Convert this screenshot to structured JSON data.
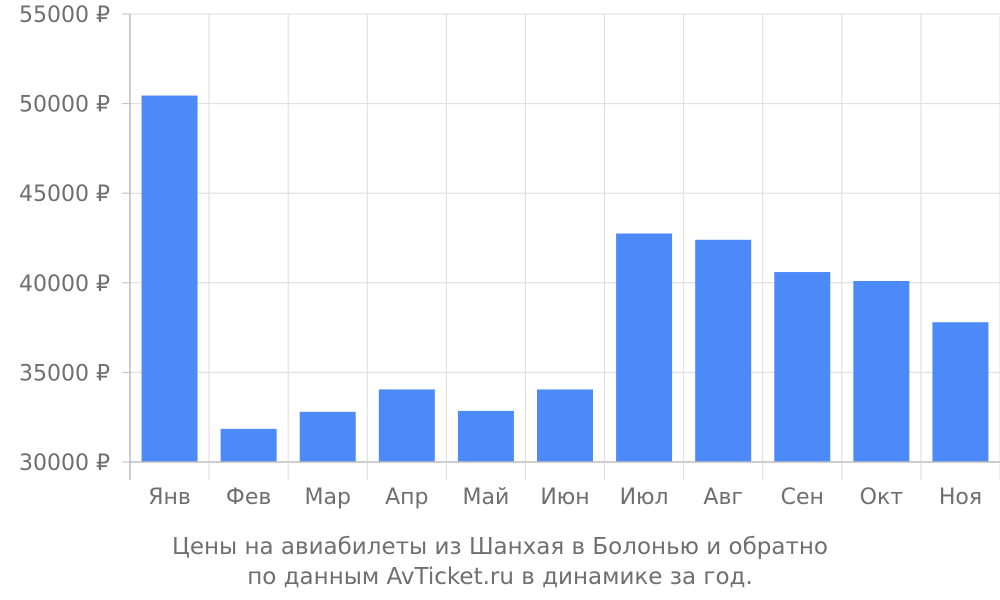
{
  "chart_data": {
    "type": "bar",
    "categories": [
      "Янв",
      "Фев",
      "Мар",
      "Апр",
      "Май",
      "Июн",
      "Июл",
      "Авг",
      "Сен",
      "Окт",
      "Ноя"
    ],
    "values": [
      50450,
      31850,
      32800,
      34050,
      32850,
      34050,
      42750,
      42400,
      40600,
      40100,
      37800
    ],
    "ylim": [
      30000,
      55000
    ],
    "yticks": [
      "30000 ₽",
      "35000 ₽",
      "40000 ₽",
      "45000 ₽",
      "50000 ₽",
      "55000 ₽"
    ],
    "grid": true,
    "bar_color": "#4d8af9"
  },
  "caption": {
    "line1": "Цены на авиабилеты из Шанхая в Болонью и обратно",
    "line2": "по данным AvTicket.ru в динамике за год."
  }
}
